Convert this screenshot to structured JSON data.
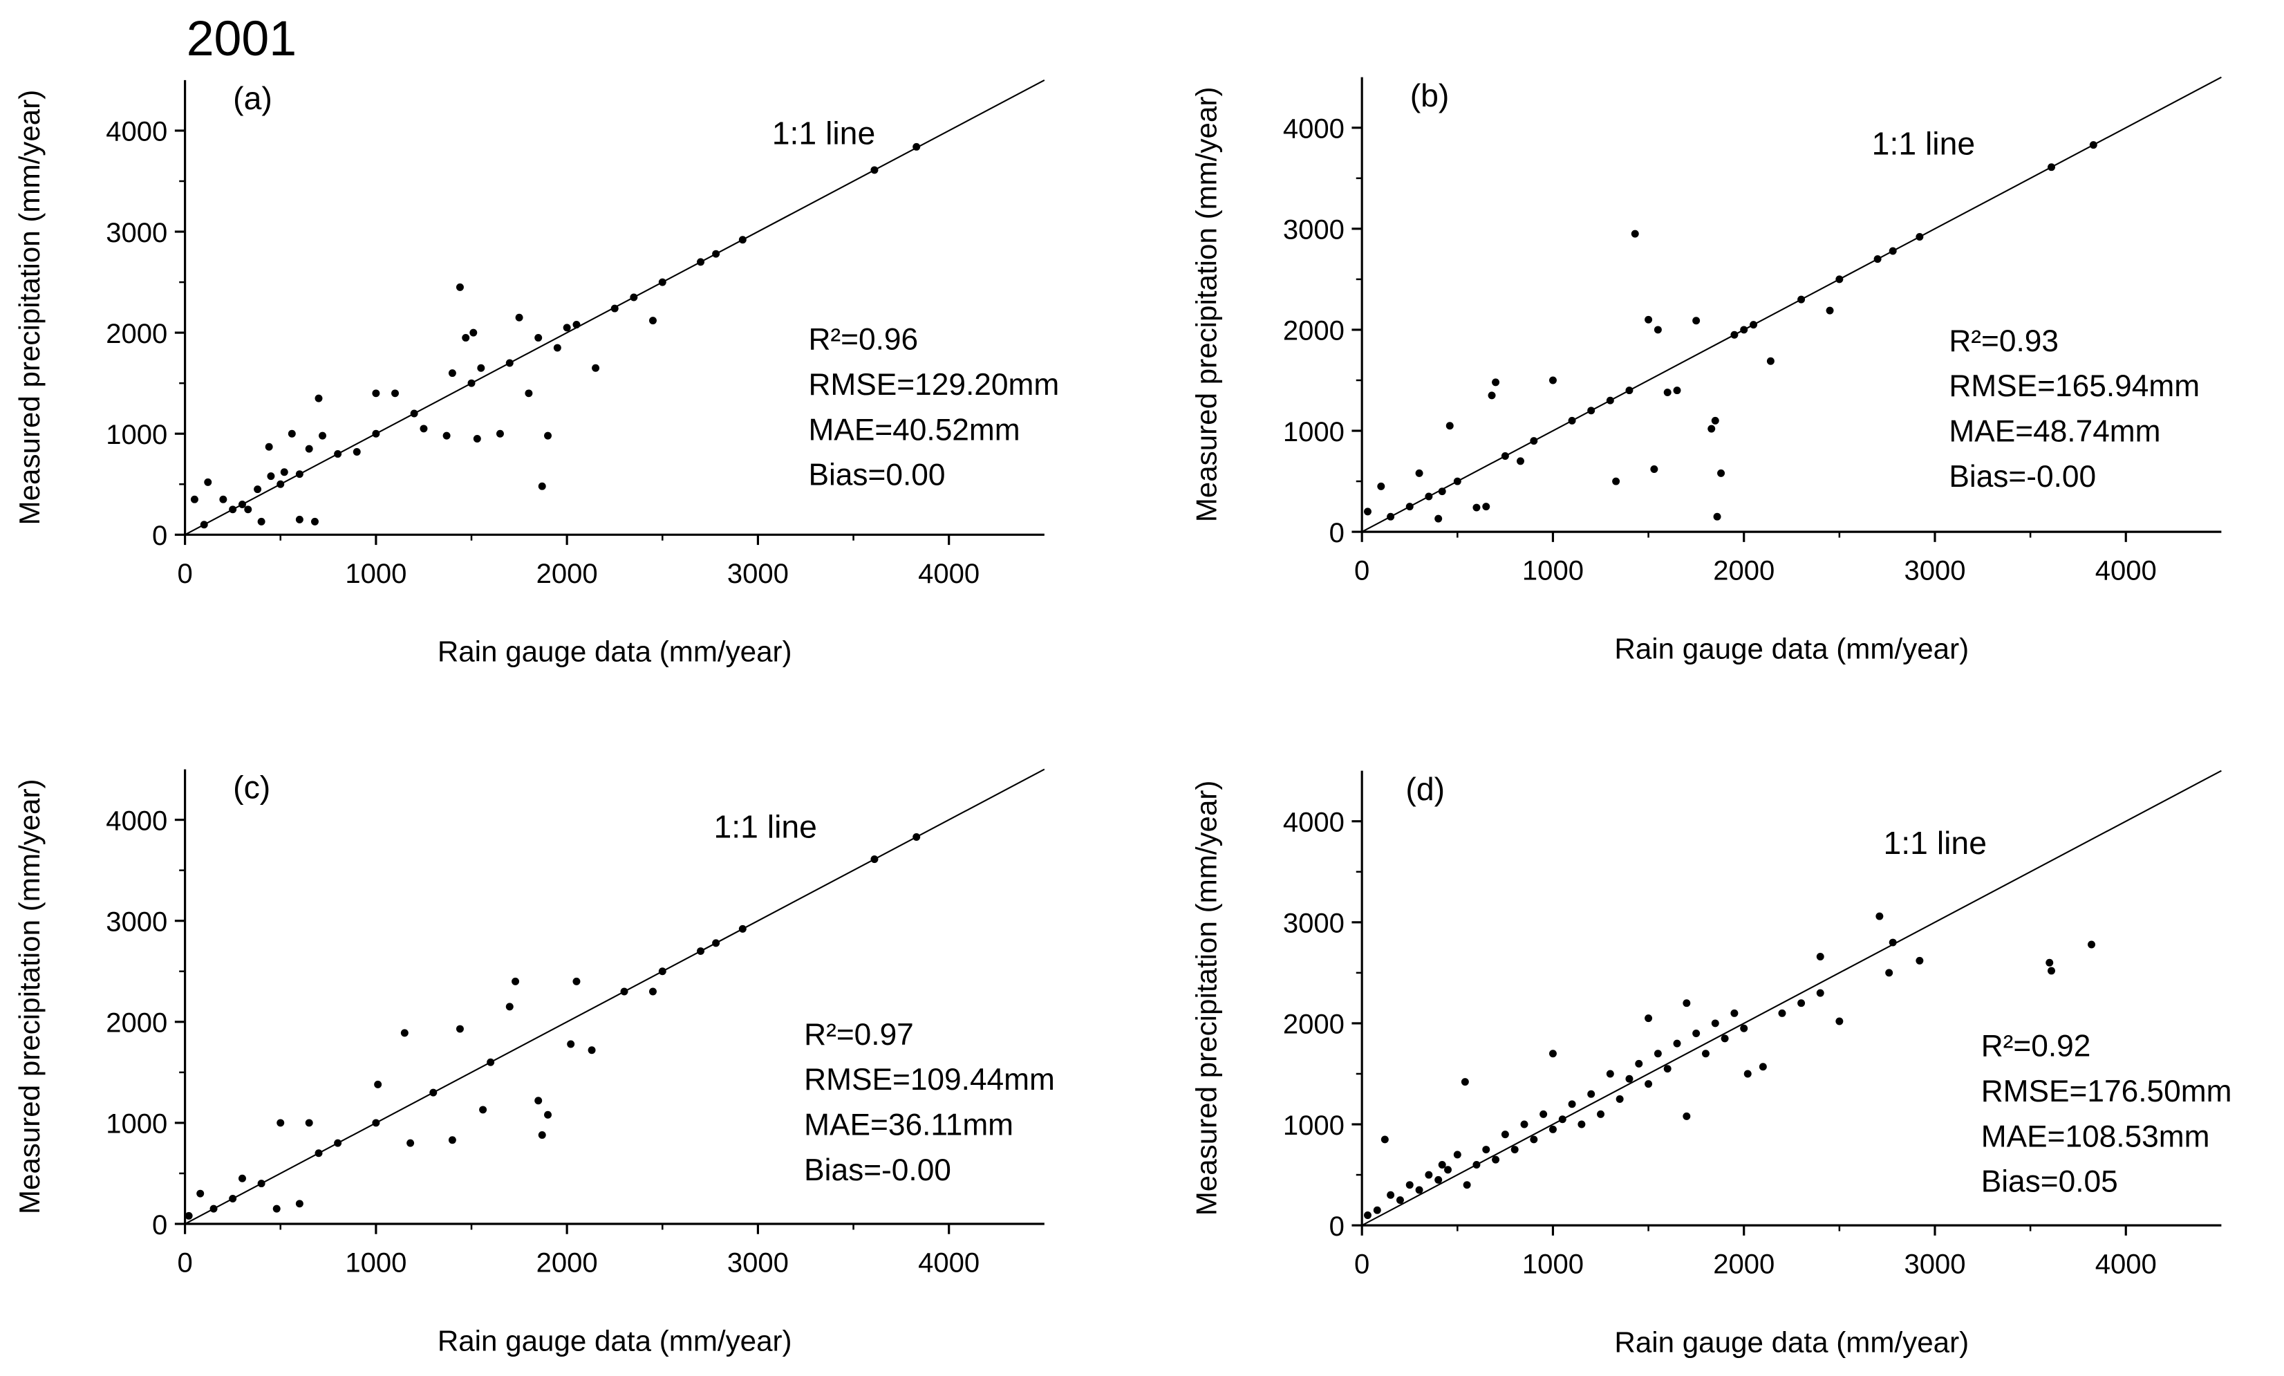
{
  "title": "2001",
  "chart_data": [
    {
      "type": "scatter",
      "panel_label": "(a)",
      "line_label": "1:1 line",
      "one_to_one_line": true,
      "color": "#000000",
      "x_label": "Rain gauge data (mm/year)",
      "y_label": "Measured precipitation (mm/year)",
      "annotations": [
        "R²=0.96",
        "RMSE=129.20mm",
        "MAE=40.52mm",
        "Bias=0.00"
      ],
      "xlim": [
        0,
        4500
      ],
      "ylim": [
        0,
        4500
      ],
      "xticks": [
        0,
        1000,
        2000,
        3000,
        4000
      ],
      "yticks": [
        0,
        1000,
        2000,
        3000,
        4000
      ],
      "x": [
        50,
        120,
        100,
        200,
        300,
        330,
        380,
        400,
        440,
        450,
        500,
        520,
        560,
        600,
        650,
        680,
        700,
        720,
        800,
        900,
        1000,
        1100,
        1200,
        1250,
        1370,
        1400,
        1440,
        1470,
        1510,
        1530,
        1550,
        1650,
        1750,
        1800,
        1850,
        1870,
        1900,
        1950,
        2000,
        2050,
        2150,
        2250,
        2350,
        2450,
        2500,
        2700,
        2780,
        2920,
        3610,
        3830,
        250,
        600,
        1000,
        1500,
        1700
      ],
      "y": [
        350,
        520,
        100,
        350,
        300,
        250,
        450,
        130,
        870,
        580,
        500,
        620,
        1000,
        150,
        850,
        130,
        1350,
        980,
        800,
        820,
        1400,
        1400,
        1200,
        1050,
        980,
        1600,
        2450,
        1950,
        2000,
        950,
        1650,
        1000,
        2150,
        1400,
        1950,
        480,
        980,
        1850,
        2050,
        2080,
        1650,
        2240,
        2350,
        2120,
        2500,
        2700,
        2780,
        2920,
        3610,
        3840,
        250,
        600,
        1000,
        1500,
        1700
      ]
    },
    {
      "type": "scatter",
      "panel_label": "(b)",
      "line_label": "1:1 line",
      "one_to_one_line": true,
      "color": "#000000",
      "x_label": "Rain gauge data (mm/year)",
      "y_label": "Measured precipitation (mm/year)",
      "annotations": [
        "R²=0.93",
        "RMSE=165.94mm",
        "MAE=48.74mm",
        "Bias=-0.00"
      ],
      "xlim": [
        0,
        4500
      ],
      "ylim": [
        0,
        4500
      ],
      "xticks": [
        0,
        1000,
        2000,
        3000,
        4000
      ],
      "yticks": [
        0,
        1000,
        2000,
        3000,
        4000
      ],
      "x": [
        30,
        100,
        150,
        250,
        300,
        350,
        400,
        420,
        460,
        500,
        600,
        650,
        680,
        700,
        750,
        830,
        900,
        1000,
        1100,
        1200,
        1300,
        1330,
        1400,
        1430,
        1500,
        1530,
        1550,
        1600,
        1650,
        1750,
        1830,
        1850,
        1860,
        1880,
        1950,
        2000,
        2050,
        2140,
        2300,
        2450,
        2500,
        2700,
        2780,
        2920,
        3610,
        3830
      ],
      "y": [
        200,
        450,
        150,
        250,
        580,
        350,
        130,
        400,
        1050,
        500,
        240,
        250,
        1350,
        1480,
        750,
        700,
        900,
        1500,
        1100,
        1200,
        1300,
        500,
        1400,
        2950,
        2100,
        620,
        2000,
        1380,
        1400,
        2090,
        1020,
        1100,
        150,
        580,
        1950,
        2000,
        2050,
        1690,
        2300,
        2190,
        2500,
        2700,
        2780,
        2920,
        3610,
        3830
      ]
    },
    {
      "type": "scatter",
      "panel_label": "(c)",
      "line_label": "1:1 line",
      "one_to_one_line": true,
      "color": "#000000",
      "x_label": "Rain gauge data (mm/year)",
      "y_label": "Measured precipitation (mm/year)",
      "annotations": [
        "R²=0.97",
        "RMSE=109.44mm",
        "MAE=36.11mm",
        "Bias=-0.00"
      ],
      "xlim": [
        0,
        4500
      ],
      "ylim": [
        0,
        4500
      ],
      "xticks": [
        0,
        1000,
        2000,
        3000,
        4000
      ],
      "yticks": [
        0,
        1000,
        2000,
        3000,
        4000
      ],
      "x": [
        20,
        80,
        150,
        250,
        300,
        400,
        480,
        500,
        600,
        650,
        700,
        800,
        1000,
        1010,
        1150,
        1180,
        1300,
        1400,
        1440,
        1560,
        1600,
        1700,
        1730,
        1850,
        1870,
        1900,
        2020,
        2050,
        2130,
        2300,
        2450,
        2500,
        2700,
        2780,
        2920,
        3610,
        3830
      ],
      "y": [
        80,
        300,
        150,
        250,
        450,
        400,
        150,
        1000,
        200,
        1000,
        700,
        800,
        1000,
        1380,
        1890,
        800,
        1300,
        830,
        1930,
        1130,
        1600,
        2150,
        2400,
        1220,
        880,
        1080,
        1780,
        2400,
        1720,
        2300,
        2300,
        2500,
        2700,
        2780,
        2920,
        3610,
        3830
      ]
    },
    {
      "type": "scatter",
      "panel_label": "(d)",
      "line_label": "1:1 line",
      "one_to_one_line": true,
      "color": "#000000",
      "x_label": "Rain gauge data (mm/year)",
      "y_label": "Measured precipitation (mm/year)",
      "annotations": [
        "R²=0.92",
        "RMSE=176.50mm",
        "MAE=108.53mm",
        "Bias=0.05"
      ],
      "xlim": [
        0,
        4500
      ],
      "ylim": [
        0,
        4500
      ],
      "xticks": [
        0,
        1000,
        2000,
        3000,
        4000
      ],
      "yticks": [
        0,
        1000,
        2000,
        3000,
        4000
      ],
      "x": [
        30,
        80,
        120,
        150,
        200,
        250,
        300,
        350,
        400,
        420,
        450,
        500,
        540,
        550,
        600,
        650,
        700,
        750,
        800,
        850,
        900,
        950,
        1000,
        1000,
        1050,
        1100,
        1150,
        1200,
        1250,
        1300,
        1350,
        1400,
        1450,
        1500,
        1500,
        1550,
        1600,
        1650,
        1700,
        1700,
        1750,
        1800,
        1850,
        1900,
        1950,
        2000,
        2020,
        2100,
        2200,
        2300,
        2400,
        2400,
        2500,
        2710,
        2760,
        2780,
        2920,
        3600,
        3610,
        3820
      ],
      "y": [
        100,
        150,
        850,
        300,
        250,
        400,
        350,
        500,
        450,
        600,
        550,
        700,
        1420,
        400,
        600,
        750,
        650,
        900,
        750,
        1000,
        850,
        1100,
        1700,
        950,
        1050,
        1200,
        1000,
        1300,
        1100,
        1500,
        1250,
        1450,
        1600,
        2050,
        1400,
        1700,
        1550,
        1800,
        2200,
        1080,
        1900,
        1700,
        2000,
        1850,
        2100,
        1950,
        1500,
        1570,
        2100,
        2200,
        2660,
        2300,
        2020,
        3060,
        2500,
        2800,
        2620,
        2600,
        2520,
        2780
      ]
    }
  ]
}
